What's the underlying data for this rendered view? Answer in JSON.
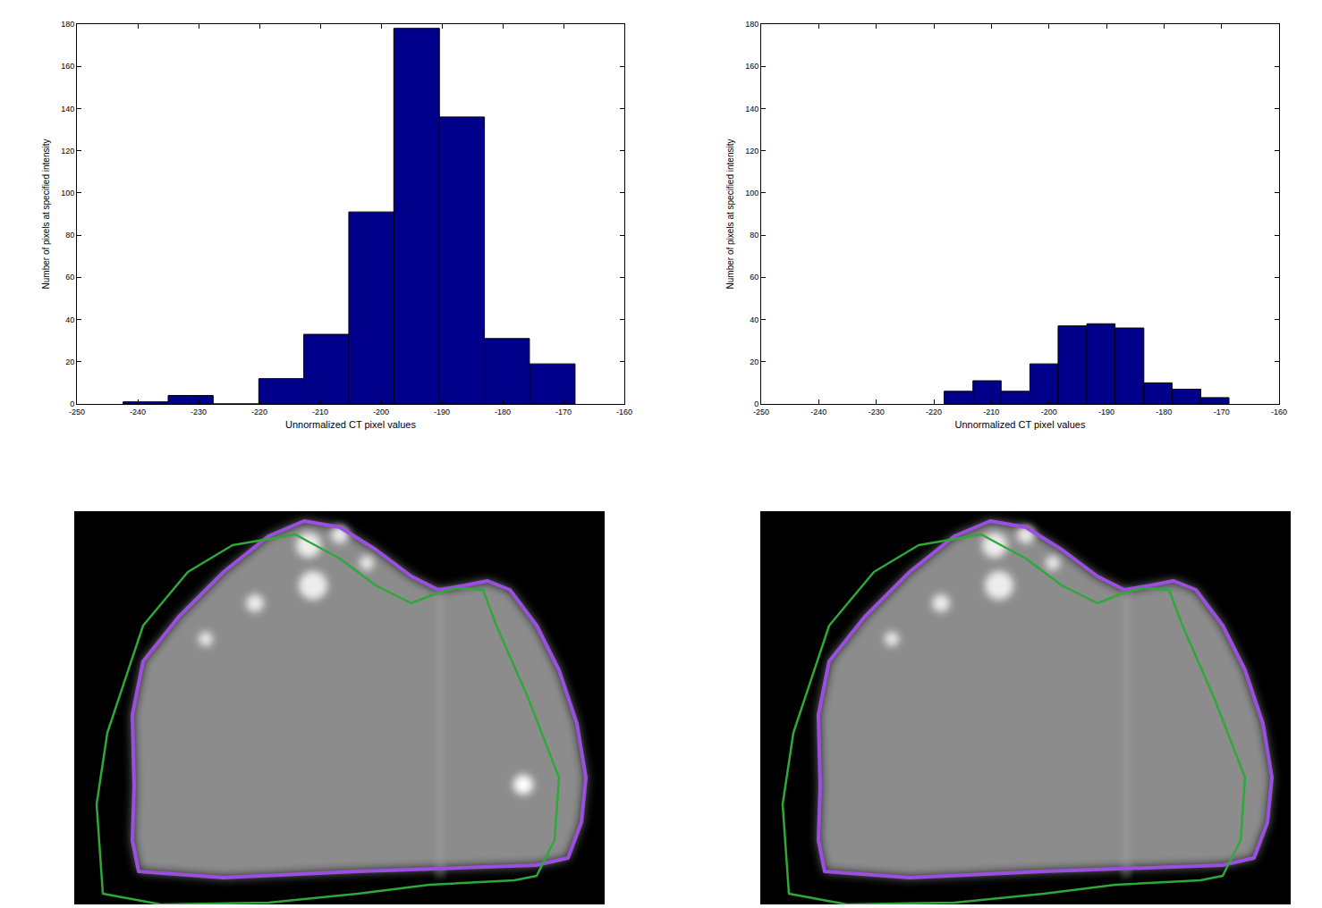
{
  "chart_data": [
    {
      "type": "histogram",
      "bins": [
        -242.4,
        -235.0,
        -227.6,
        -220.1,
        -212.7,
        -205.3,
        -197.9,
        -190.4,
        -183.0,
        -175.6,
        -168.1
      ],
      "counts": [
        1,
        4,
        0,
        12,
        33,
        91,
        178,
        136,
        31,
        19
      ],
      "color": "#00008b",
      "xlabel": "Unnormalized CT pixel values",
      "ylabel": "Number of pixels at specified intensity",
      "xlim": [
        -250,
        -160
      ],
      "xticks": [
        -250,
        -240,
        -230,
        -220,
        -210,
        -200,
        -190,
        -180,
        -170,
        -160
      ],
      "ylim": [
        0,
        180
      ],
      "yticks": [
        0,
        20,
        40,
        60,
        80,
        100,
        120,
        140,
        160,
        180
      ],
      "grid": false
    },
    {
      "type": "histogram",
      "bins": [
        -218.2,
        -213.2,
        -208.3,
        -203.3,
        -198.4,
        -193.4,
        -188.5,
        -183.5,
        -178.6,
        -173.6,
        -168.7
      ],
      "counts": [
        6,
        11,
        6,
        19,
        37,
        38,
        36,
        10,
        7,
        3
      ],
      "color": "#00008b",
      "xlabel": "Unnormalized CT pixel values",
      "ylabel": "Number of pixels at specified intensity",
      "xlim": [
        -250,
        -160
      ],
      "xticks": [
        -250,
        -240,
        -230,
        -220,
        -210,
        -200,
        -190,
        -180,
        -170,
        -160
      ],
      "ylim": [
        0,
        180
      ],
      "yticks": [
        0,
        20,
        40,
        60,
        80,
        100,
        120,
        140,
        160,
        180
      ],
      "grid": false
    }
  ]
}
